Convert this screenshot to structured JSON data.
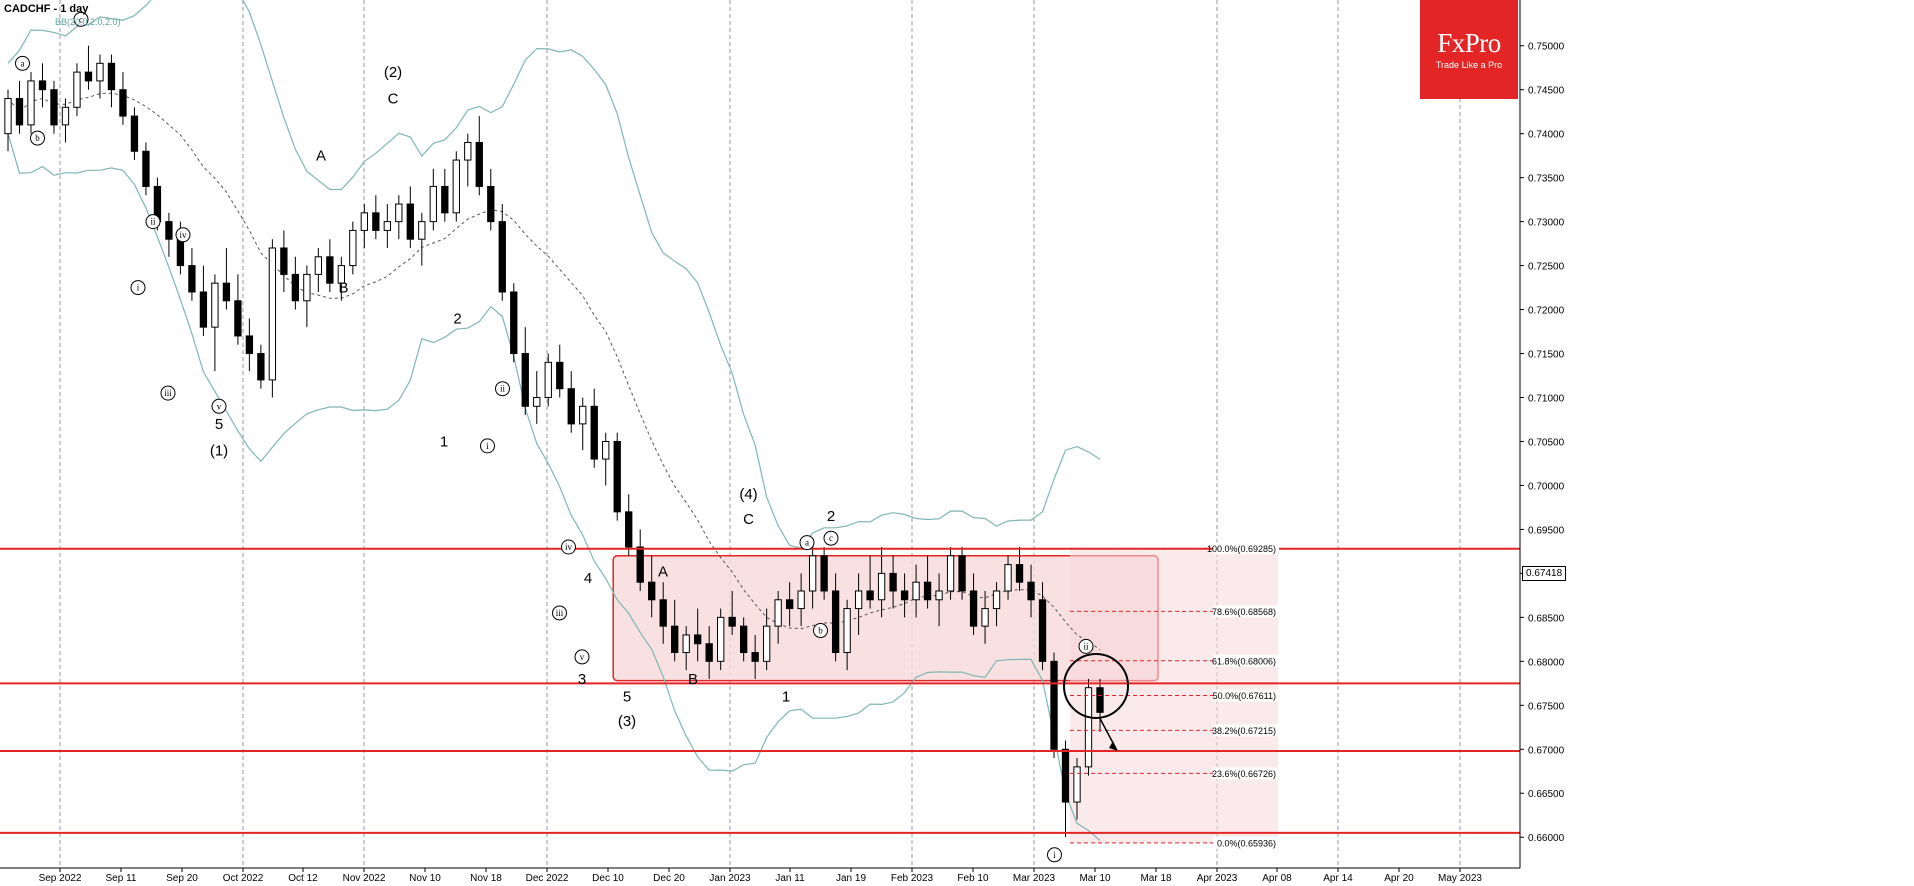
{
  "header": {
    "title": "CADCHF - 1 day",
    "indicator": "BB(20,0,2.0,2.0)"
  },
  "logo": {
    "brand": "FxPro",
    "tagline": "Trade Like a Pro"
  },
  "current_price": "0.67418",
  "chart_data": {
    "type": "candlestick",
    "symbol": "CADCHF",
    "timeframe": "1 day",
    "ylim": [
      0.6565,
      0.7552
    ],
    "y_ticks": [
      "0.75000",
      "0.74500",
      "0.74000",
      "0.73500",
      "0.73000",
      "0.72500",
      "0.72000",
      "0.71500",
      "0.71000",
      "0.70500",
      "0.70000",
      "0.69500",
      "0.69000",
      "0.68500",
      "0.68000",
      "0.67500",
      "0.67000",
      "0.66500",
      "0.66000"
    ],
    "x_ticks": [
      "Sep 2022",
      "Sep 11",
      "Sep 20",
      "Oct 2022",
      "Oct 12",
      "Nov 2022",
      "Nov 10",
      "Nov 18",
      "Dec 2022",
      "Dec 10",
      "Dec 20",
      "Jan 2023",
      "Jan 11",
      "Jan 19",
      "Feb 2023",
      "Feb 10",
      "Mar 2023",
      "Mar 10",
      "Mar 18",
      "Apr 2023",
      "Apr 08",
      "Apr 14",
      "Apr 20",
      "May 2023"
    ],
    "candles": [
      [
        0.74,
        0.745,
        0.738,
        0.744
      ],
      [
        0.744,
        0.746,
        0.74,
        0.741
      ],
      [
        0.741,
        0.747,
        0.74,
        0.746
      ],
      [
        0.746,
        0.748,
        0.743,
        0.745
      ],
      [
        0.745,
        0.746,
        0.74,
        0.741
      ],
      [
        0.741,
        0.744,
        0.739,
        0.743
      ],
      [
        0.743,
        0.748,
        0.742,
        0.747
      ],
      [
        0.747,
        0.75,
        0.745,
        0.746
      ],
      [
        0.746,
        0.749,
        0.744,
        0.748
      ],
      [
        0.748,
        0.749,
        0.743,
        0.745
      ],
      [
        0.745,
        0.747,
        0.741,
        0.742
      ],
      [
        0.742,
        0.743,
        0.737,
        0.738
      ],
      [
        0.738,
        0.739,
        0.733,
        0.734
      ],
      [
        0.734,
        0.735,
        0.729,
        0.73
      ],
      [
        0.73,
        0.731,
        0.726,
        0.728
      ],
      [
        0.728,
        0.73,
        0.724,
        0.725
      ],
      [
        0.725,
        0.727,
        0.721,
        0.722
      ],
      [
        0.722,
        0.725,
        0.717,
        0.718
      ],
      [
        0.718,
        0.724,
        0.713,
        0.723
      ],
      [
        0.723,
        0.727,
        0.72,
        0.721
      ],
      [
        0.721,
        0.724,
        0.716,
        0.717
      ],
      [
        0.717,
        0.719,
        0.713,
        0.715
      ],
      [
        0.715,
        0.716,
        0.711,
        0.712
      ],
      [
        0.712,
        0.728,
        0.71,
        0.727
      ],
      [
        0.727,
        0.729,
        0.722,
        0.724
      ],
      [
        0.724,
        0.726,
        0.72,
        0.721
      ],
      [
        0.721,
        0.725,
        0.718,
        0.724
      ],
      [
        0.724,
        0.727,
        0.722,
        0.726
      ],
      [
        0.726,
        0.728,
        0.722,
        0.723
      ],
      [
        0.723,
        0.726,
        0.721,
        0.725
      ],
      [
        0.725,
        0.73,
        0.724,
        0.729
      ],
      [
        0.729,
        0.732,
        0.727,
        0.731
      ],
      [
        0.731,
        0.733,
        0.728,
        0.729
      ],
      [
        0.729,
        0.732,
        0.727,
        0.73
      ],
      [
        0.73,
        0.733,
        0.728,
        0.732
      ],
      [
        0.732,
        0.734,
        0.727,
        0.728
      ],
      [
        0.728,
        0.731,
        0.725,
        0.73
      ],
      [
        0.73,
        0.736,
        0.729,
        0.734
      ],
      [
        0.734,
        0.736,
        0.73,
        0.731
      ],
      [
        0.731,
        0.738,
        0.73,
        0.737
      ],
      [
        0.737,
        0.74,
        0.734,
        0.739
      ],
      [
        0.739,
        0.742,
        0.733,
        0.734
      ],
      [
        0.734,
        0.736,
        0.729,
        0.73
      ],
      [
        0.73,
        0.732,
        0.721,
        0.722
      ],
      [
        0.722,
        0.723,
        0.714,
        0.715
      ],
      [
        0.715,
        0.718,
        0.708,
        0.709
      ],
      [
        0.709,
        0.713,
        0.707,
        0.71
      ],
      [
        0.71,
        0.715,
        0.709,
        0.714
      ],
      [
        0.714,
        0.716,
        0.71,
        0.711
      ],
      [
        0.711,
        0.713,
        0.706,
        0.707
      ],
      [
        0.707,
        0.71,
        0.704,
        0.709
      ],
      [
        0.709,
        0.711,
        0.702,
        0.703
      ],
      [
        0.703,
        0.706,
        0.7,
        0.705
      ],
      [
        0.705,
        0.706,
        0.696,
        0.697
      ],
      [
        0.697,
        0.699,
        0.692,
        0.693
      ],
      [
        0.693,
        0.695,
        0.688,
        0.689
      ],
      [
        0.689,
        0.692,
        0.685,
        0.687
      ],
      [
        0.687,
        0.689,
        0.682,
        0.684
      ],
      [
        0.684,
        0.687,
        0.68,
        0.681
      ],
      [
        0.681,
        0.684,
        0.679,
        0.683
      ],
      [
        0.683,
        0.686,
        0.68,
        0.682
      ],
      [
        0.682,
        0.684,
        0.678,
        0.68
      ],
      [
        0.68,
        0.686,
        0.679,
        0.685
      ],
      [
        0.685,
        0.688,
        0.683,
        0.684
      ],
      [
        0.684,
        0.685,
        0.68,
        0.681
      ],
      [
        0.681,
        0.683,
        0.678,
        0.68
      ],
      [
        0.68,
        0.686,
        0.679,
        0.684
      ],
      [
        0.684,
        0.688,
        0.682,
        0.687
      ],
      [
        0.687,
        0.689,
        0.684,
        0.686
      ],
      [
        0.686,
        0.69,
        0.684,
        0.688
      ],
      [
        0.688,
        0.694,
        0.686,
        0.692
      ],
      [
        0.692,
        0.693,
        0.687,
        0.688
      ],
      [
        0.688,
        0.69,
        0.68,
        0.681
      ],
      [
        0.681,
        0.687,
        0.679,
        0.686
      ],
      [
        0.686,
        0.69,
        0.683,
        0.688
      ],
      [
        0.688,
        0.692,
        0.686,
        0.687
      ],
      [
        0.687,
        0.693,
        0.685,
        0.69
      ],
      [
        0.69,
        0.692,
        0.686,
        0.688
      ],
      [
        0.688,
        0.69,
        0.685,
        0.687
      ],
      [
        0.687,
        0.691,
        0.685,
        0.689
      ],
      [
        0.689,
        0.692,
        0.686,
        0.687
      ],
      [
        0.687,
        0.69,
        0.684,
        0.688
      ],
      [
        0.688,
        0.693,
        0.687,
        0.692
      ],
      [
        0.692,
        0.693,
        0.687,
        0.688
      ],
      [
        0.688,
        0.69,
        0.683,
        0.684
      ],
      [
        0.684,
        0.688,
        0.682,
        0.686
      ],
      [
        0.686,
        0.689,
        0.684,
        0.688
      ],
      [
        0.688,
        0.692,
        0.687,
        0.691
      ],
      [
        0.691,
        0.693,
        0.688,
        0.689
      ],
      [
        0.689,
        0.691,
        0.685,
        0.687
      ],
      [
        0.687,
        0.689,
        0.679,
        0.68
      ],
      [
        0.68,
        0.681,
        0.669,
        0.67
      ],
      [
        0.67,
        0.671,
        0.66,
        0.664
      ],
      [
        0.664,
        0.669,
        0.662,
        0.668
      ],
      [
        0.668,
        0.678,
        0.667,
        0.677
      ],
      [
        0.677,
        0.678,
        0.672,
        0.6742
      ]
    ],
    "support_resistance": [
      0.6928,
      0.6775,
      0.6698,
      0.6605
    ],
    "range_box": [
      0.6778,
      0.692
    ],
    "fibonacci": [
      {
        "label": "100.0%(0.69285)",
        "value": 0.69285
      },
      {
        "label": "78.6%(0.68568)",
        "value": 0.68568
      },
      {
        "label": "61.8%(0.68006)",
        "value": 0.68006
      },
      {
        "label": "50.0%(0.67611)",
        "value": 0.67611
      },
      {
        "label": "38.2%(0.67215)",
        "value": 0.67215
      },
      {
        "label": "23.6%(0.66726)",
        "value": 0.66726
      },
      {
        "label": "0.0%(0.65936)",
        "value": 0.65936
      }
    ],
    "wave_labels": [
      {
        "text": "a",
        "circled": true,
        "x_frac": 0.015,
        "price": 0.748
      },
      {
        "text": "b",
        "circled": true,
        "x_frac": 0.025,
        "price": 0.7395
      },
      {
        "text": "c",
        "circled": true,
        "x_frac": 0.054,
        "price": 0.753
      },
      {
        "text": "ii",
        "circled": true,
        "x_frac": 0.102,
        "price": 0.73
      },
      {
        "text": "iv",
        "circled": true,
        "x_frac": 0.122,
        "price": 0.7285
      },
      {
        "text": "i",
        "circled": true,
        "x_frac": 0.092,
        "price": 0.7225
      },
      {
        "text": "iii",
        "circled": true,
        "x_frac": 0.112,
        "price": 0.7105
      },
      {
        "text": "v",
        "circled": true,
        "x_frac": 0.146,
        "price": 0.709
      },
      {
        "text": "5",
        "circled": false,
        "x_frac": 0.146,
        "price": 0.707
      },
      {
        "text": "(1)",
        "circled": false,
        "x_frac": 0.146,
        "price": 0.704
      },
      {
        "text": "A",
        "circled": false,
        "x_frac": 0.214,
        "price": 0.7375
      },
      {
        "text": "B",
        "circled": false,
        "x_frac": 0.229,
        "price": 0.7225
      },
      {
        "text": "(2)",
        "circled": false,
        "x_frac": 0.262,
        "price": 0.747
      },
      {
        "text": "C",
        "circled": false,
        "x_frac": 0.262,
        "price": 0.744
      },
      {
        "text": "2",
        "circled": false,
        "x_frac": 0.305,
        "price": 0.719
      },
      {
        "text": "ii",
        "circled": true,
        "x_frac": 0.335,
        "price": 0.711
      },
      {
        "text": "1",
        "circled": false,
        "x_frac": 0.296,
        "price": 0.705
      },
      {
        "text": "i",
        "circled": true,
        "x_frac": 0.325,
        "price": 0.7045
      },
      {
        "text": "iv",
        "circled": true,
        "x_frac": 0.379,
        "price": 0.693
      },
      {
        "text": "4",
        "circled": false,
        "x_frac": 0.392,
        "price": 0.6895
      },
      {
        "text": "iii",
        "circled": true,
        "x_frac": 0.373,
        "price": 0.6855
      },
      {
        "text": "v",
        "circled": true,
        "x_frac": 0.388,
        "price": 0.6805
      },
      {
        "text": "3",
        "circled": false,
        "x_frac": 0.388,
        "price": 0.678
      },
      {
        "text": "5",
        "circled": false,
        "x_frac": 0.418,
        "price": 0.676
      },
      {
        "text": "(3)",
        "circled": false,
        "x_frac": 0.418,
        "price": 0.6732
      },
      {
        "text": "A",
        "circled": false,
        "x_frac": 0.442,
        "price": 0.6902
      },
      {
        "text": "B",
        "circled": false,
        "x_frac": 0.462,
        "price": 0.678
      },
      {
        "text": "(4)",
        "circled": false,
        "x_frac": 0.499,
        "price": 0.699
      },
      {
        "text": "C",
        "circled": false,
        "x_frac": 0.499,
        "price": 0.6962
      },
      {
        "text": "a",
        "circled": true,
        "x_frac": 0.538,
        "price": 0.6935
      },
      {
        "text": "b",
        "circled": true,
        "x_frac": 0.547,
        "price": 0.6835
      },
      {
        "text": "2",
        "circled": false,
        "x_frac": 0.554,
        "price": 0.6965
      },
      {
        "text": "c",
        "circled": true,
        "x_frac": 0.554,
        "price": 0.694
      },
      {
        "text": "1",
        "circled": false,
        "x_frac": 0.524,
        "price": 0.676
      },
      {
        "text": "ii",
        "circled": true,
        "x_frac": 0.724,
        "price": 0.6817
      },
      {
        "text": "i",
        "circled": true,
        "x_frac": 0.703,
        "price": 0.658
      }
    ]
  },
  "colors": {
    "candle_up": "#ffffff",
    "candle_down": "#000000",
    "bollinger": "#7fb6b5",
    "sr_line": "#e32526",
    "zone_fill": "#f8d9da",
    "grid": "#9a9a9a"
  }
}
